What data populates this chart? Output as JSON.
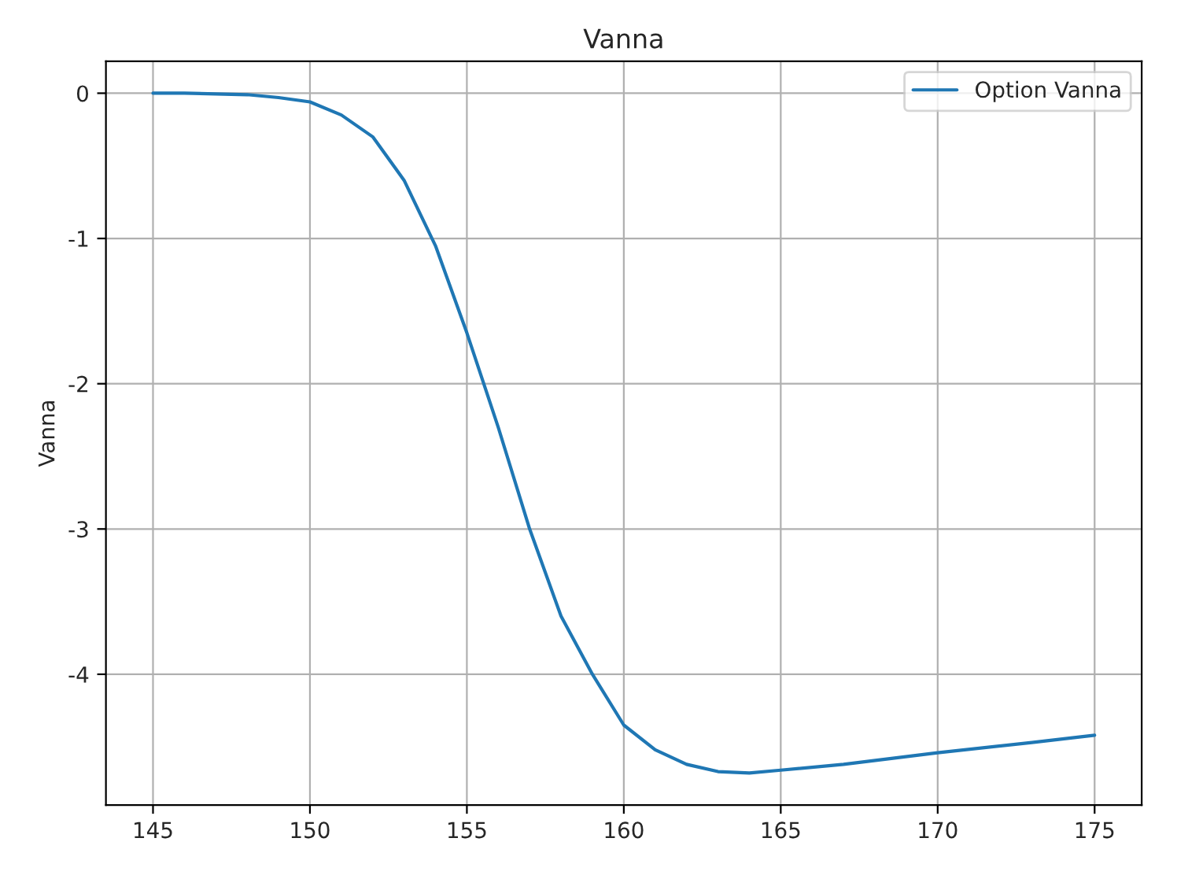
{
  "chart_data": {
    "type": "line",
    "title": "Vanna",
    "ylabel": "Vanna",
    "x": [
      145,
      146,
      147,
      148,
      149,
      150,
      151,
      152,
      153,
      154,
      155,
      156,
      157,
      158,
      159,
      160,
      161,
      162,
      163,
      164,
      165,
      167,
      170,
      173,
      175
    ],
    "series": [
      {
        "name": "Option Vanna",
        "color": "#1f77b4",
        "values": [
          0,
          0,
          -0.005,
          -0.01,
          -0.03,
          -0.06,
          -0.15,
          -0.3,
          -0.6,
          -1.05,
          -1.65,
          -2.3,
          -3.0,
          -3.6,
          -4.0,
          -4.35,
          -4.52,
          -4.62,
          -4.67,
          -4.68,
          -4.66,
          -4.62,
          -4.54,
          -4.47,
          -4.42
        ]
      }
    ],
    "xlim": [
      143.5,
      176.5
    ],
    "xticks": [
      145,
      150,
      155,
      160,
      165,
      170,
      175
    ],
    "ylim": [
      -4.9,
      0.22
    ],
    "yticks": [
      -4,
      -3,
      -2,
      -1,
      0
    ],
    "grid": true,
    "legend": "top right"
  }
}
